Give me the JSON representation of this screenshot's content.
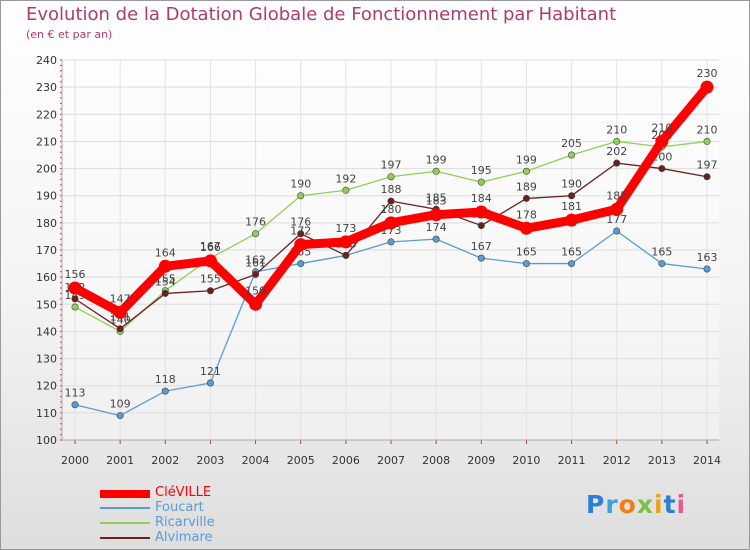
{
  "title": "Evolution de la Dotation Globale de Fonctionnement par Habitant",
  "subtitle": "(en € et par an)",
  "logo_letters": [
    "P",
    "r",
    "o",
    "x",
    "i",
    "t",
    "i"
  ],
  "logo_colors": [
    "#2b7fd4",
    "#3aa0e0",
    "#f07d1a",
    "#7cc242",
    "#e8a317",
    "#2b7fd4",
    "#e85a8a"
  ],
  "chart_data": {
    "type": "line",
    "title": "Evolution de la Dotation Globale de Fonctionnement par Habitant",
    "ylabel": "(en € et par an)",
    "xlabel": "",
    "categories": [
      "2000",
      "2001",
      "2002",
      "2003",
      "2004",
      "2005",
      "2006",
      "2007",
      "2008",
      "2009",
      "2010",
      "2011",
      "2012",
      "2013",
      "2014"
    ],
    "ylim": [
      100,
      240
    ],
    "yticks": [
      100,
      110,
      120,
      130,
      140,
      150,
      160,
      170,
      180,
      190,
      200,
      210,
      220,
      230,
      240
    ],
    "grid": true,
    "series": [
      {
        "name": "Foucart",
        "color": "#5b9bd5",
        "values": [
          113,
          109,
          118,
          121,
          162,
          165,
          168,
          173,
          174,
          167,
          165,
          165,
          177,
          165,
          163
        ]
      },
      {
        "name": "Ricarville",
        "color": "#8fd155",
        "values": [
          149,
          140,
          155,
          167,
          176,
          190,
          192,
          197,
          199,
          195,
          199,
          205,
          210,
          208,
          210
        ]
      },
      {
        "name": "Alvimare",
        "color": "#6b1f1f",
        "values": [
          152,
          141,
          154,
          155,
          161,
          176,
          168,
          188,
          185,
          179,
          189,
          190,
          202,
          200,
          197
        ]
      },
      {
        "name": "CléVILLE",
        "color": "#ff0000",
        "values": [
          156,
          147,
          164,
          166,
          150,
          172,
          173,
          180,
          183,
          184,
          178,
          181,
          185,
          210,
          230
        ]
      }
    ],
    "legend": [
      "CléVILLE",
      "Foucart",
      "Ricarville",
      "Alvimare"
    ]
  }
}
